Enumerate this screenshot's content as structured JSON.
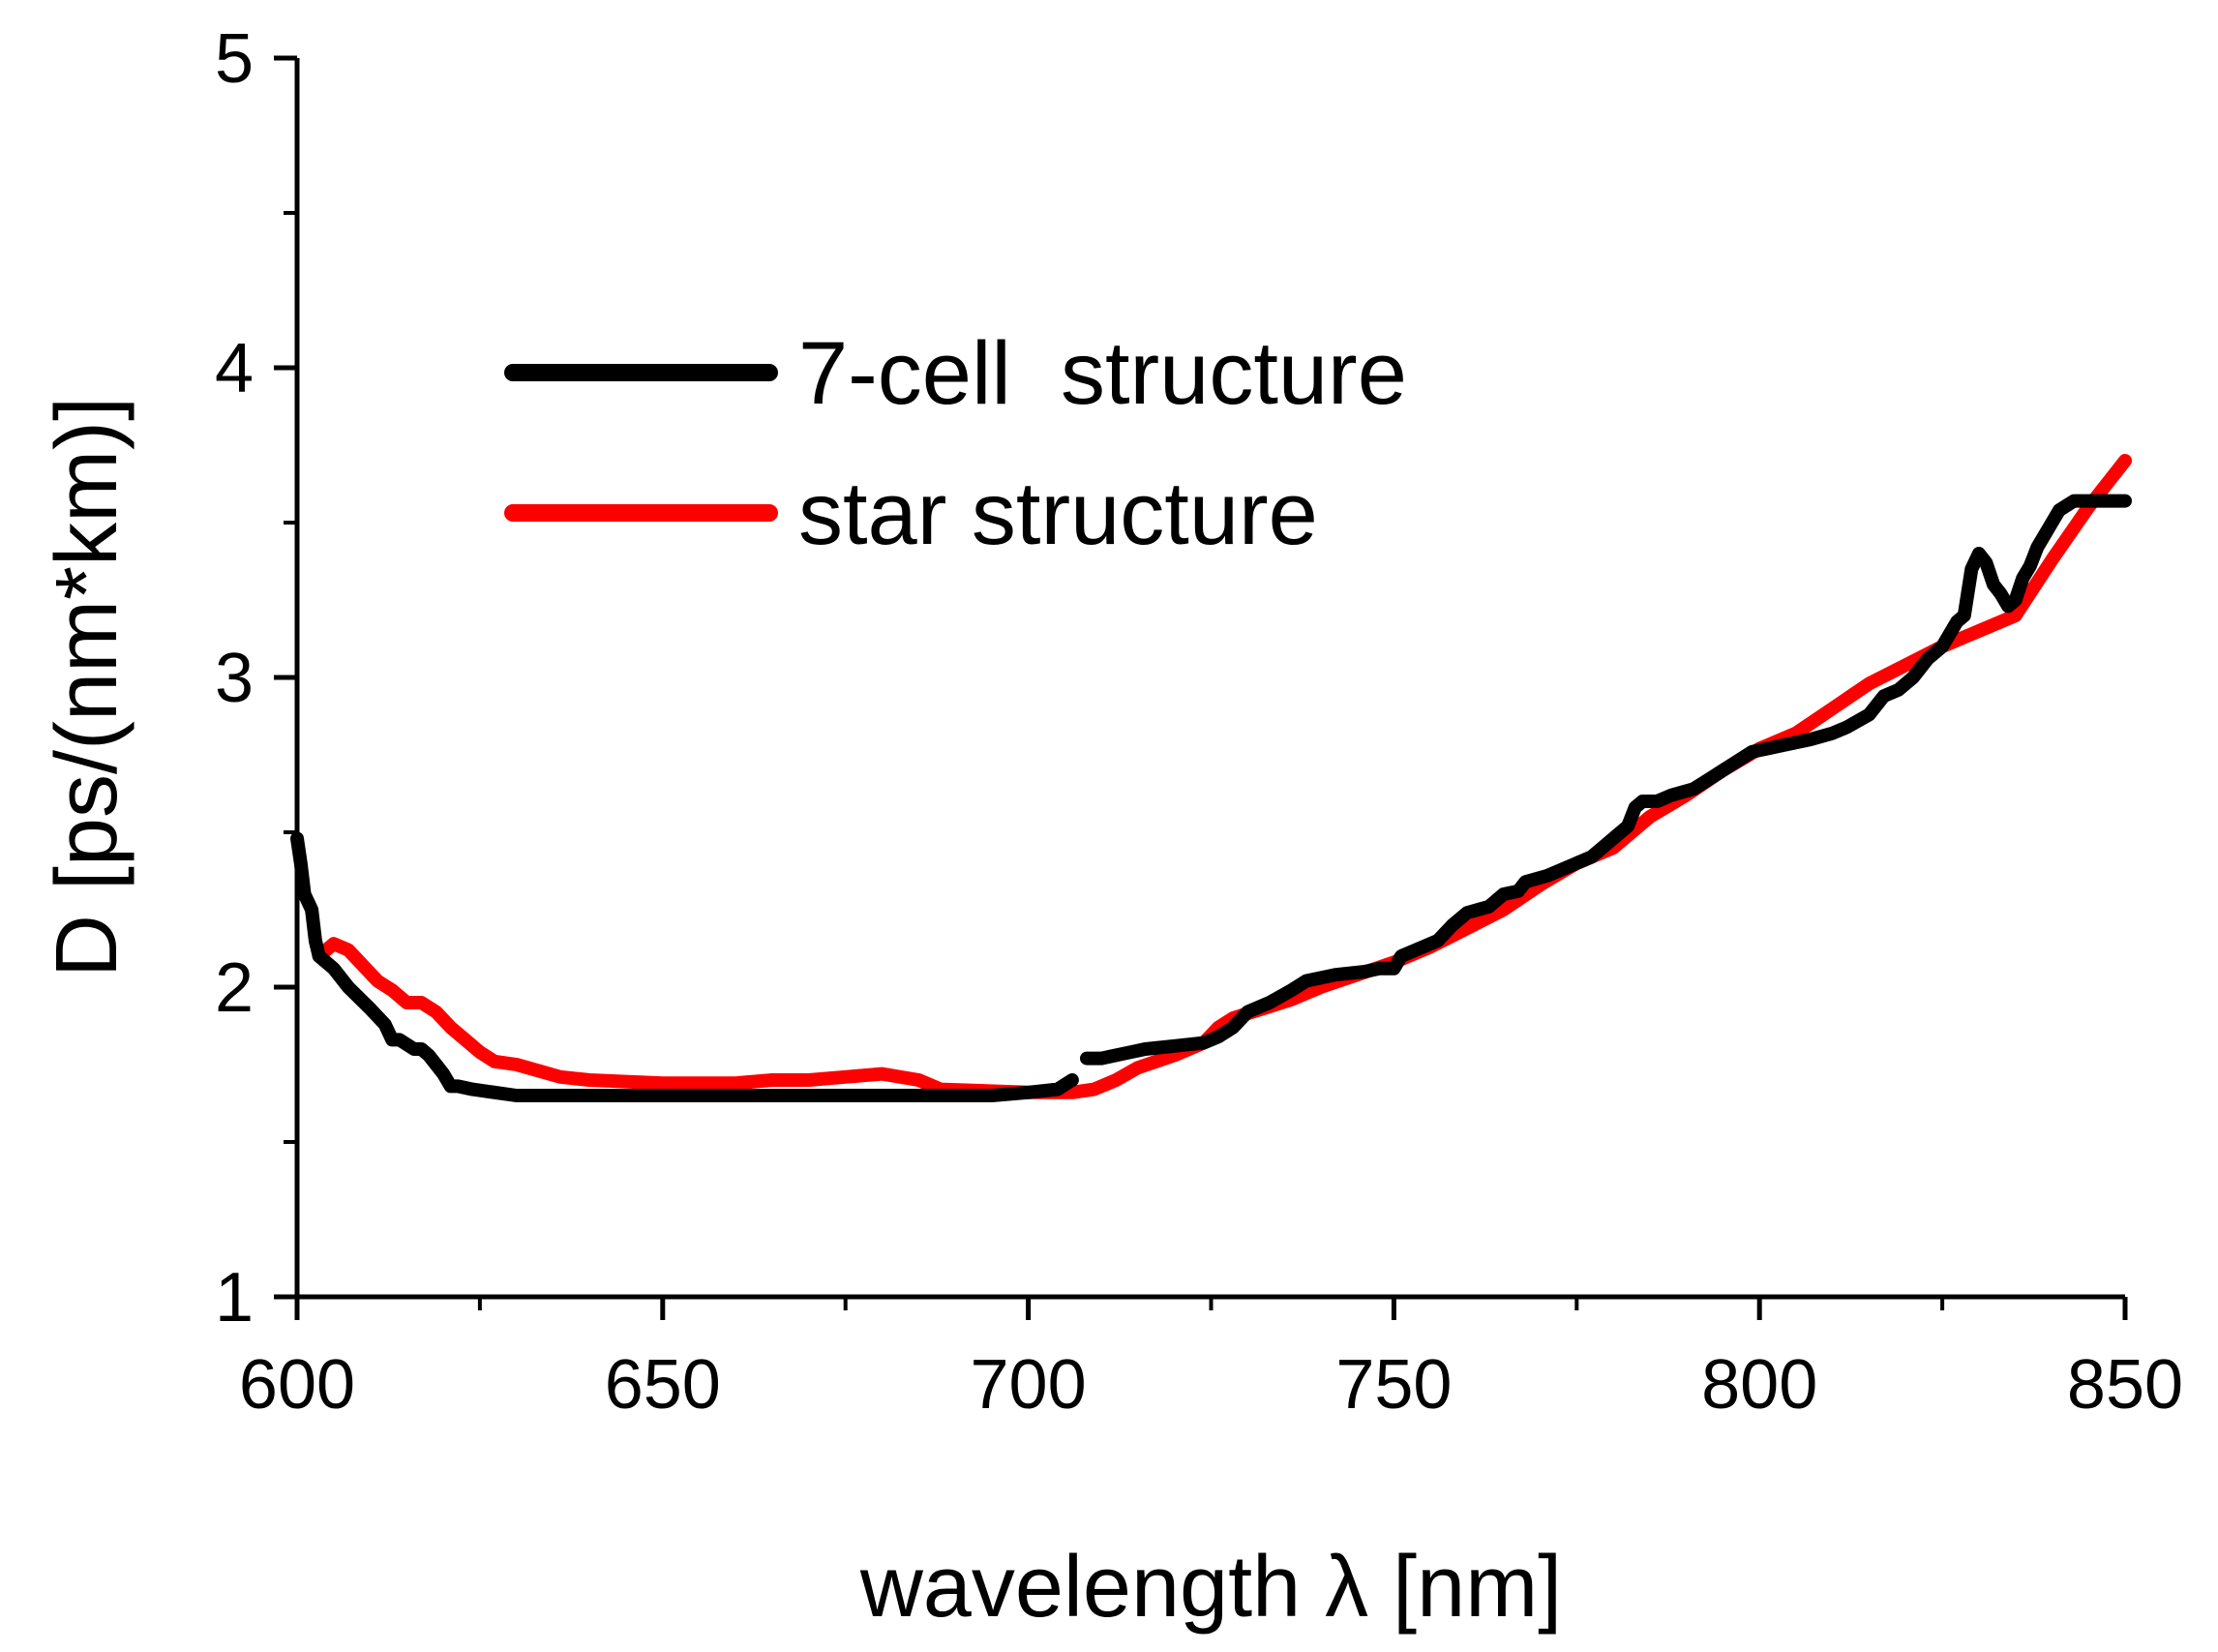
{
  "chart_data": {
    "type": "line",
    "title": "",
    "xlabel": "wavelength λ [nm]",
    "ylabel": "D [ps/(nm*km)]",
    "xlim": [
      600,
      850
    ],
    "ylim": [
      1,
      5
    ],
    "x_ticks": [
      600,
      650,
      700,
      750,
      800,
      850
    ],
    "y_ticks": [
      1,
      2,
      3,
      4,
      5
    ],
    "x_minor_step": 25,
    "y_minor_step": 0.5,
    "grid": false,
    "legend_position": "upper-left-center",
    "series": [
      {
        "name": "7-cell  structure",
        "color": "#000000",
        "points": [
          [
            600,
            2.48
          ],
          [
            600.5,
            2.4
          ],
          [
            601,
            2.3
          ],
          [
            602,
            2.25
          ],
          [
            602.5,
            2.15
          ],
          [
            603,
            2.1
          ],
          [
            605,
            2.06
          ],
          [
            607,
            2.0
          ],
          [
            610,
            1.93
          ],
          [
            612,
            1.88
          ],
          [
            613,
            1.83
          ],
          [
            614,
            1.83
          ],
          [
            616,
            1.8
          ],
          [
            617,
            1.8
          ],
          [
            618,
            1.78
          ],
          [
            619,
            1.75
          ],
          [
            620,
            1.72
          ],
          [
            621,
            1.68
          ],
          [
            622,
            1.68
          ],
          [
            624,
            1.67
          ],
          [
            627,
            1.66
          ],
          [
            630,
            1.65
          ],
          [
            640,
            1.65
          ],
          [
            660,
            1.65
          ],
          [
            680,
            1.65
          ],
          [
            695,
            1.65
          ],
          [
            700,
            1.66
          ],
          [
            704,
            1.67
          ],
          [
            706,
            1.7
          ],
          null,
          [
            708,
            1.77
          ],
          [
            710,
            1.77
          ],
          [
            714,
            1.79
          ],
          [
            716,
            1.8
          ],
          [
            720,
            1.81
          ],
          [
            724,
            1.82
          ],
          [
            726,
            1.84
          ],
          [
            728,
            1.87
          ],
          [
            730,
            1.92
          ],
          [
            733,
            1.95
          ],
          [
            736,
            1.99
          ],
          [
            738,
            2.02
          ],
          [
            742,
            2.04
          ],
          [
            746,
            2.05
          ],
          [
            748,
            2.06
          ],
          [
            750,
            2.06
          ],
          [
            751,
            2.1
          ],
          [
            753,
            2.12
          ],
          [
            756,
            2.15
          ],
          [
            758,
            2.2
          ],
          [
            760,
            2.24
          ],
          [
            763,
            2.26
          ],
          [
            765,
            2.3
          ],
          [
            767,
            2.31
          ],
          [
            768,
            2.34
          ],
          [
            771,
            2.36
          ],
          [
            774,
            2.39
          ],
          [
            777,
            2.42
          ],
          [
            780,
            2.48
          ],
          [
            782,
            2.52
          ],
          [
            783,
            2.58
          ],
          [
            784,
            2.6
          ],
          [
            786,
            2.6
          ],
          [
            788,
            2.62
          ],
          [
            791,
            2.64
          ],
          [
            793,
            2.67
          ],
          [
            795,
            2.7
          ],
          [
            797,
            2.73
          ],
          [
            799,
            2.76
          ],
          [
            801,
            2.77
          ],
          [
            803,
            2.78
          ],
          [
            807,
            2.8
          ],
          [
            810,
            2.82
          ],
          [
            812,
            2.84
          ],
          [
            815,
            2.88
          ],
          [
            817,
            2.94
          ],
          [
            819,
            2.96
          ],
          [
            821,
            3.0
          ],
          [
            823,
            3.06
          ],
          [
            825,
            3.1
          ],
          [
            827,
            3.18
          ],
          [
            828,
            3.2
          ],
          [
            829,
            3.35
          ],
          [
            830,
            3.4
          ],
          [
            831,
            3.37
          ],
          [
            832,
            3.3
          ],
          [
            833,
            3.27
          ],
          [
            834,
            3.23
          ],
          [
            835,
            3.25
          ],
          [
            836,
            3.32
          ],
          [
            837,
            3.36
          ],
          [
            838,
            3.42
          ],
          [
            840,
            3.5
          ],
          [
            841,
            3.54
          ],
          [
            843,
            3.57
          ],
          [
            850,
            3.57
          ]
        ]
      },
      {
        "name": "star structure",
        "color": "#ff0000",
        "points": [
          [
            603,
            2.1
          ],
          [
            605,
            2.14
          ],
          [
            607,
            2.12
          ],
          [
            609,
            2.07
          ],
          [
            611,
            2.02
          ],
          [
            613,
            1.99
          ],
          [
            615,
            1.95
          ],
          [
            617,
            1.95
          ],
          [
            619,
            1.92
          ],
          [
            621,
            1.87
          ],
          [
            623,
            1.83
          ],
          [
            625,
            1.79
          ],
          [
            627,
            1.76
          ],
          [
            630,
            1.75
          ],
          [
            633,
            1.73
          ],
          [
            636,
            1.71
          ],
          [
            640,
            1.7
          ],
          [
            650,
            1.69
          ],
          [
            660,
            1.69
          ],
          [
            665,
            1.7
          ],
          [
            670,
            1.7
          ],
          [
            675,
            1.71
          ],
          [
            680,
            1.72
          ],
          [
            685,
            1.7
          ],
          [
            688,
            1.67
          ],
          [
            700,
            1.66
          ],
          [
            706,
            1.66
          ],
          [
            709,
            1.67
          ],
          [
            712,
            1.7
          ],
          [
            715,
            1.74
          ],
          [
            720,
            1.78
          ],
          [
            724,
            1.82
          ],
          [
            726,
            1.87
          ],
          [
            728,
            1.9
          ],
          [
            732,
            1.93
          ],
          [
            736,
            1.96
          ],
          [
            740,
            2.0
          ],
          [
            745,
            2.04
          ],
          [
            750,
            2.08
          ],
          [
            755,
            2.13
          ],
          [
            760,
            2.19
          ],
          [
            765,
            2.25
          ],
          [
            770,
            2.33
          ],
          [
            775,
            2.4
          ],
          [
            780,
            2.45
          ],
          [
            785,
            2.55
          ],
          [
            790,
            2.62
          ],
          [
            795,
            2.7
          ],
          [
            800,
            2.77
          ],
          [
            805,
            2.82
          ],
          [
            810,
            2.9
          ],
          [
            815,
            2.98
          ],
          [
            820,
            3.04
          ],
          [
            825,
            3.1
          ],
          [
            830,
            3.15
          ],
          [
            835,
            3.2
          ],
          [
            840,
            3.38
          ],
          [
            845,
            3.55
          ],
          [
            850,
            3.7
          ]
        ]
      }
    ]
  }
}
